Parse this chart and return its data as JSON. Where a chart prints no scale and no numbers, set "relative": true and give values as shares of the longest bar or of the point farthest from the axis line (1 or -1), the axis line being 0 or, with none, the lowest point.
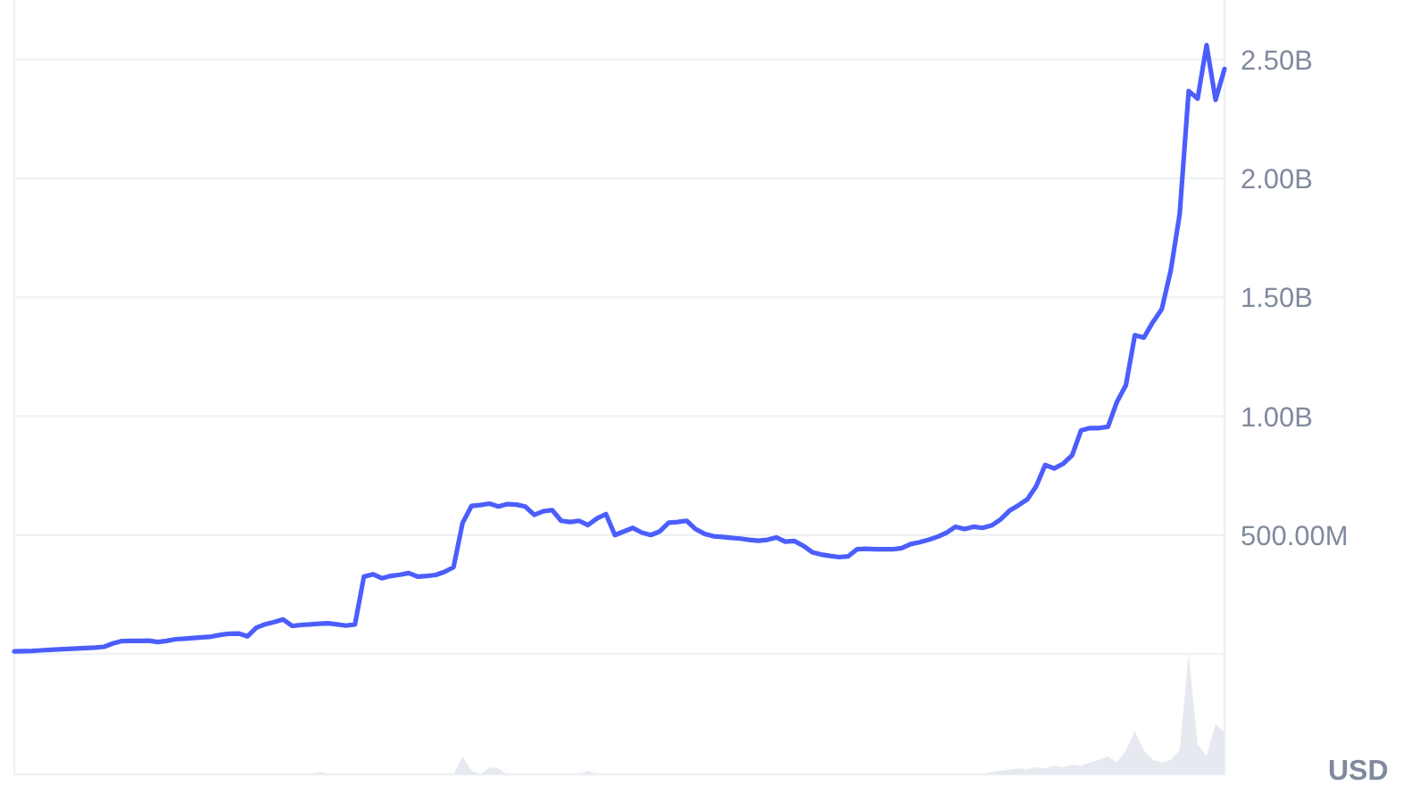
{
  "chart_data": [
    {
      "type": "line",
      "ylabel": "USD",
      "categories": [
        null,
        null,
        null,
        null,
        null,
        null,
        null,
        null,
        null,
        null,
        null,
        null,
        null,
        null,
        null,
        null,
        null,
        null,
        null,
        null,
        null,
        null,
        null,
        null,
        null,
        null,
        null,
        null,
        null,
        null,
        null,
        null,
        null,
        null,
        null,
        null,
        null,
        null,
        null,
        null,
        null,
        null,
        null,
        null,
        null,
        null,
        null,
        null,
        null,
        null,
        null,
        null,
        null,
        null,
        null,
        null,
        null,
        null,
        null,
        null,
        null,
        null,
        null,
        null,
        null,
        null,
        null,
        null,
        null,
        null,
        null,
        null,
        null,
        null,
        null,
        null,
        null,
        null,
        null,
        null,
        null,
        null,
        null,
        null,
        null,
        null,
        null,
        null,
        null,
        null,
        null,
        null,
        null,
        null,
        null,
        null,
        null,
        null,
        null,
        null,
        null,
        null,
        null,
        null,
        null,
        null,
        null,
        null,
        null,
        null,
        null,
        null,
        null,
        null,
        null,
        null,
        null,
        null,
        null,
        null,
        null,
        null,
        null,
        null,
        null,
        null,
        null,
        null,
        null,
        null,
        null,
        null,
        null,
        null,
        null,
        null
      ],
      "values": [
        11000000,
        12000000,
        13000000,
        15000000,
        17000000,
        19000000,
        21000000,
        23000000,
        25000000,
        27000000,
        30000000,
        44000000,
        54000000,
        55000000,
        55000000,
        56000000,
        50000000,
        55000000,
        62000000,
        64000000,
        67000000,
        70000000,
        73000000,
        80000000,
        85000000,
        86000000,
        74000000,
        110000000,
        125000000,
        134000000,
        145000000,
        118000000,
        122000000,
        124000000,
        127000000,
        129000000,
        124000000,
        119000000,
        124000000,
        325000000,
        335000000,
        318000000,
        328000000,
        333000000,
        340000000,
        325000000,
        328000000,
        332000000,
        345000000,
        365000000,
        550000000,
        622000000,
        626000000,
        632000000,
        620000000,
        630000000,
        628000000,
        620000000,
        585000000,
        600000000,
        605000000,
        560000000,
        555000000,
        560000000,
        542000000,
        570000000,
        588000000,
        500000000,
        515000000,
        530000000,
        510000000,
        500000000,
        515000000,
        552000000,
        555000000,
        560000000,
        525000000,
        505000000,
        495000000,
        492000000,
        488000000,
        485000000,
        480000000,
        476000000,
        480000000,
        490000000,
        472000000,
        475000000,
        455000000,
        428000000,
        418000000,
        412000000,
        407000000,
        410000000,
        440000000,
        442000000,
        440000000,
        440000000,
        440000000,
        445000000,
        462000000,
        470000000,
        480000000,
        493000000,
        510000000,
        535000000,
        525000000,
        535000000,
        530000000,
        540000000,
        565000000,
        602000000,
        625000000,
        650000000,
        705000000,
        795000000,
        780000000,
        800000000,
        835000000,
        940000000,
        950000000,
        950000000,
        955000000,
        1060000000,
        1130000000,
        1340000000,
        1330000000,
        1395000000,
        1450000000,
        1612000000,
        1850000000,
        2367000000,
        2335000000,
        2560000000,
        2330000000,
        2460000000
      ],
      "color": "#4b5efc",
      "ylim": [
        0,
        2750000000
      ],
      "yticks": [
        {
          "value": 0,
          "label": null
        },
        {
          "value": 500000000,
          "label": "500.00M"
        },
        {
          "value": 1000000000,
          "label": "1.00B"
        },
        {
          "value": 1500000000,
          "label": "1.50B"
        },
        {
          "value": 2000000000,
          "label": "2.00B"
        },
        {
          "value": 2500000000,
          "label": "2.50B"
        }
      ],
      "grid": "y",
      "tick_labels": "y"
    },
    {
      "type": "area",
      "relative": true,
      "categories": [
        null,
        null,
        null,
        null,
        null,
        null,
        null,
        null,
        null,
        null,
        null,
        null,
        null,
        null,
        null,
        null,
        null,
        null,
        null,
        null,
        null,
        null,
        null,
        null,
        null,
        null,
        null,
        null,
        null,
        null,
        null,
        null,
        null,
        null,
        null,
        null,
        null,
        null,
        null,
        null,
        null,
        null,
        null,
        null,
        null,
        null,
        null,
        null,
        null,
        null,
        null,
        null,
        null,
        null,
        null,
        null,
        null,
        null,
        null,
        null,
        null,
        null,
        null,
        null,
        null,
        null,
        null,
        null,
        null,
        null,
        null,
        null,
        null,
        null,
        null,
        null,
        null,
        null,
        null,
        null,
        null,
        null,
        null,
        null,
        null,
        null,
        null,
        null,
        null,
        null,
        null,
        null,
        null,
        null,
        null,
        null,
        null,
        null,
        null,
        null,
        null,
        null,
        null,
        null,
        null,
        null,
        null,
        null,
        null,
        null,
        null,
        null,
        null,
        null,
        null,
        null,
        null,
        null,
        null,
        null,
        null,
        null,
        null,
        null,
        null,
        null,
        null,
        null,
        null,
        null,
        null,
        null,
        null,
        null,
        null,
        null
      ],
      "values": [
        0,
        0,
        0,
        0,
        0,
        0,
        0,
        0,
        0,
        0,
        0,
        0,
        0,
        0,
        0,
        0,
        0,
        0,
        0,
        0,
        0,
        0,
        0,
        0,
        0,
        0,
        0,
        0,
        0,
        0,
        0,
        0,
        0,
        0,
        0.02,
        0,
        0,
        0,
        0,
        0,
        0,
        0,
        0,
        0,
        0,
        0,
        0,
        0,
        0,
        0,
        0.15,
        0.03,
        0,
        0.06,
        0.05,
        0,
        0,
        0,
        0,
        0,
        0,
        0,
        0,
        0,
        0.03,
        0,
        0,
        0,
        0,
        0,
        0,
        0,
        0,
        0,
        0,
        0,
        0,
        0,
        0,
        0,
        0,
        0,
        0,
        0,
        0,
        0,
        0,
        0,
        0,
        0,
        0,
        0,
        0,
        0,
        0,
        0,
        0,
        0,
        0,
        0,
        0,
        0,
        0,
        0,
        0,
        0,
        0,
        0,
        0,
        0.02,
        0.03,
        0.04,
        0.05,
        0.04,
        0.06,
        0.05,
        0.07,
        0.06,
        0.08,
        0.07,
        0.1,
        0.12,
        0.15,
        0.1,
        0.2,
        0.36,
        0.2,
        0.12,
        0.1,
        0.12,
        0.2,
        1,
        0.25,
        0.15,
        0.42,
        0.35
      ],
      "color": "#e6e9ef",
      "tick_labels": false
    }
  ]
}
